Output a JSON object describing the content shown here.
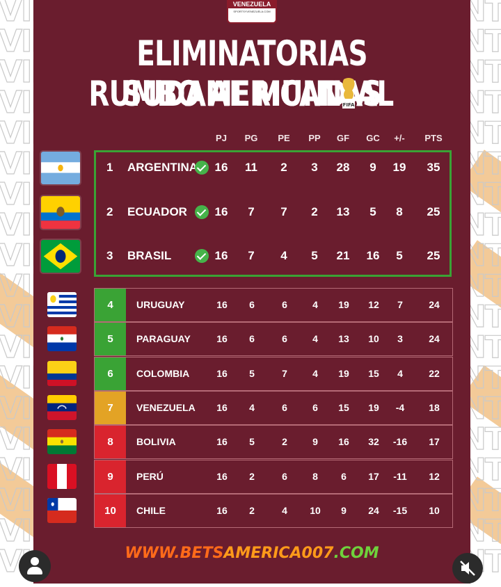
{
  "badge": {
    "title": "VENEZUELA",
    "subtitle": "SPORTSYVENEZUELA.COM"
  },
  "watermark": {
    "left": "VIN",
    "right": "NTO"
  },
  "title": {
    "line1": "ELIMINATORIAS SUDAMERICANAS",
    "line2": "RUMBO AL MUNDIAL",
    "trophy_text": "FIFA"
  },
  "columns": [
    "PJ",
    "PG",
    "PE",
    "PP",
    "GF",
    "GC",
    "+/-",
    "PTS"
  ],
  "qualified": [
    {
      "pos": "1",
      "team": "ARGENTINA",
      "flag": "argentina-flag",
      "stats": [
        "16",
        "11",
        "2",
        "3",
        "28",
        "9",
        "19",
        "35"
      ]
    },
    {
      "pos": "2",
      "team": "ECUADOR",
      "flag": "ecuador-flag",
      "stats": [
        "16",
        "7",
        "7",
        "2",
        "13",
        "5",
        "8",
        "25"
      ]
    },
    {
      "pos": "3",
      "team": "BRASIL",
      "flag": "brasil-flag",
      "stats": [
        "16",
        "7",
        "4",
        "5",
        "21",
        "16",
        "5",
        "25"
      ]
    }
  ],
  "rest": [
    {
      "pos": "4",
      "team": "URUGUAY",
      "color": "#3aa335",
      "stats": [
        "16",
        "6",
        "6",
        "4",
        "19",
        "12",
        "7",
        "24"
      ]
    },
    {
      "pos": "5",
      "team": "PARAGUAY",
      "color": "#3aa335",
      "stats": [
        "16",
        "6",
        "6",
        "4",
        "13",
        "10",
        "3",
        "24"
      ]
    },
    {
      "pos": "6",
      "team": "COLOMBIA",
      "color": "#3aa335",
      "stats": [
        "16",
        "5",
        "7",
        "4",
        "19",
        "15",
        "4",
        "22"
      ]
    },
    {
      "pos": "7",
      "team": "VENEZUELA",
      "color": "#e3a325",
      "stats": [
        "16",
        "4",
        "6",
        "6",
        "15",
        "19",
        "-4",
        "18"
      ]
    },
    {
      "pos": "8",
      "team": "BOLIVIA",
      "color": "#d9242e",
      "stats": [
        "16",
        "5",
        "2",
        "9",
        "16",
        "32",
        "-16",
        "17"
      ]
    },
    {
      "pos": "9",
      "team": "PERÚ",
      "color": "#d9242e",
      "stats": [
        "16",
        "2",
        "6",
        "8",
        "6",
        "17",
        "-11",
        "12"
      ]
    },
    {
      "pos": "10",
      "team": "CHILE",
      "color": "#d9242e",
      "stats": [
        "16",
        "2",
        "4",
        "10",
        "9",
        "24",
        "-15",
        "10"
      ]
    }
  ],
  "footer": {
    "part1": "WWW.BETS",
    "part2": "AMERICA007",
    "part3": ".COM"
  },
  "colors": {
    "background": "#6a1d2e",
    "qualified_border": "#3aa335"
  }
}
